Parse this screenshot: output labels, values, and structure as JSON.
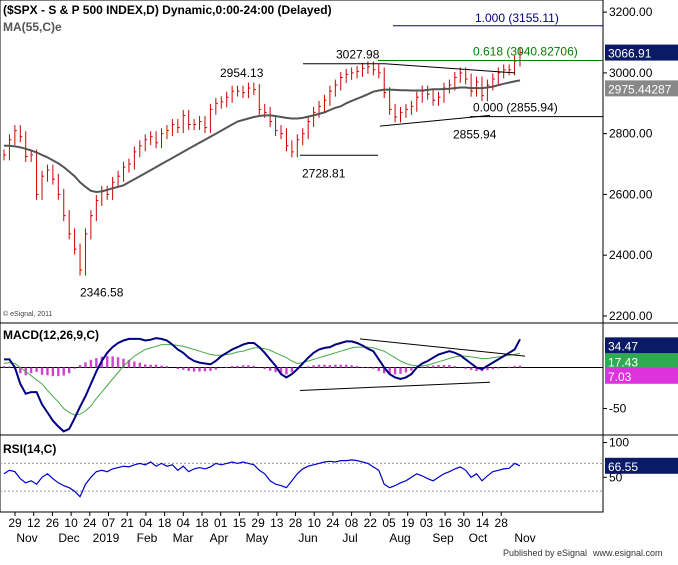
{
  "header": {
    "title": "($SPX - S & P 500 INDEX,D) Dynamic,0:00-24:00 (Delayed)",
    "ma_label": "MA(55,C)e",
    "copyright": "© eSignal, 2011"
  },
  "footer": {
    "published": "Published by eSignal",
    "url": "www.esignal.com"
  },
  "colors": {
    "price": "#cc0000",
    "ma": "#555555",
    "macd_line": "#000080",
    "macd_signal": "#44aa44",
    "histogram": "#cc44cc",
    "rsi": "#0000cc",
    "fib_green": "#008000",
    "fib_blue": "#000080",
    "badge_dark": "#0a1a66",
    "badge_grey": "#888888",
    "badge_green": "#2eaa50",
    "badge_pink": "#dd33dd"
  },
  "chart_data": [
    {
      "type": "line",
      "panel": "price",
      "ylim": [
        2180,
        3240
      ],
      "yticks": [
        "3200.00",
        "3000.00",
        "2800.00",
        "2600.00",
        "2400.00",
        "2200.00"
      ],
      "ytick_values": [
        3200,
        3000,
        2800,
        2600,
        2400,
        2200
      ],
      "current_value": "3066.91",
      "ma_value": "2975.44287",
      "annotations": [
        {
          "label": "1.000 (3155.11)",
          "value": 3155.11
        },
        {
          "label": "0.618 (3040.82706)",
          "value": 3040.83
        },
        {
          "label": "0.000 (2855.94)",
          "value": 2855.94
        },
        {
          "label": "3027.98",
          "value": 3027.98
        },
        {
          "label": "2954.13",
          "value": 2954.13
        },
        {
          "label": "2855.94",
          "value": 2855.94
        },
        {
          "label": "2728.81",
          "value": 2728.81
        },
        {
          "label": "2346.58",
          "value": 2346.58
        }
      ],
      "series": [
        {
          "key": "close",
          "values": [
            2730,
            2780,
            2810,
            2790,
            2725,
            2730,
            2600,
            2660,
            2680,
            2650,
            2600,
            2530,
            2470,
            2420,
            2351,
            2470,
            2530,
            2580,
            2610,
            2600,
            2640,
            2660,
            2690,
            2700,
            2740,
            2760,
            2780,
            2790,
            2770,
            2800,
            2810,
            2830,
            2820,
            2860,
            2830,
            2830,
            2840,
            2820,
            2880,
            2900,
            2905,
            2920,
            2940,
            2940,
            2935,
            2950,
            2945,
            2880,
            2870,
            2840,
            2810,
            2800,
            2760,
            2740,
            2780,
            2800,
            2840,
            2870,
            2890,
            2910,
            2940,
            2960,
            2985,
            2995,
            3000,
            3005,
            3015,
            3020,
            3010,
            3000,
            2935,
            2880,
            2855,
            2870,
            2880,
            2890,
            2920,
            2940,
            2930,
            2910,
            2920,
            2950,
            2960,
            2985,
            3000,
            2980,
            2940,
            2970,
            2925,
            2960,
            2980,
            3000,
            3010,
            3010,
            3039,
            3066.91
          ]
        },
        {
          "key": "ma",
          "values": [
            2760,
            2760,
            2758,
            2755,
            2750,
            2745,
            2738,
            2730,
            2722,
            2712,
            2702,
            2690,
            2675,
            2660,
            2640,
            2625,
            2612,
            2608,
            2610,
            2615,
            2620,
            2625,
            2630,
            2640,
            2650,
            2660,
            2670,
            2680,
            2690,
            2700,
            2710,
            2720,
            2730,
            2740,
            2750,
            2760,
            2770,
            2780,
            2790,
            2800,
            2810,
            2820,
            2830,
            2840,
            2845,
            2850,
            2855,
            2858,
            2860,
            2860,
            2858,
            2855,
            2852,
            2850,
            2850,
            2852,
            2856,
            2860,
            2865,
            2870,
            2878,
            2885,
            2890,
            2900,
            2908,
            2915,
            2922,
            2930,
            2938,
            2942,
            2945,
            2945,
            2944,
            2943,
            2943,
            2942,
            2942,
            2942,
            2944,
            2946,
            2946,
            2947,
            2948,
            2950,
            2952,
            2952,
            2950,
            2950,
            2950,
            2952,
            2955,
            2960,
            2964,
            2968,
            2972,
            2975.44
          ]
        }
      ]
    },
    {
      "type": "line",
      "panel": "macd",
      "label": "MACD(12,26,9,C)",
      "ylim": [
        -80,
        52
      ],
      "yticks": [
        "-50"
      ],
      "ytick_values": [
        -50
      ],
      "values_shown": [
        "34.47",
        "17.43",
        "7.03"
      ],
      "series": [
        {
          "key": "macd",
          "values": [
            10,
            10,
            0,
            -20,
            -32,
            -30,
            -30,
            -45,
            -55,
            -65,
            -72,
            -78,
            -75,
            -62,
            -48,
            -35,
            -20,
            -5,
            8,
            18,
            25,
            30,
            33,
            35,
            35,
            35,
            33,
            34,
            36,
            35,
            33,
            28,
            22,
            18,
            12,
            8,
            6,
            5,
            4,
            8,
            14,
            18,
            22,
            25,
            28,
            30,
            30,
            25,
            18,
            10,
            2,
            -8,
            -12,
            -8,
            -2,
            5,
            12,
            18,
            22,
            24,
            25,
            28,
            30,
            32,
            32,
            30,
            27,
            23,
            20,
            10,
            0,
            -8,
            -12,
            -14,
            -12,
            -8,
            0,
            5,
            8,
            12,
            16,
            18,
            20,
            18,
            15,
            10,
            5,
            0,
            -2,
            2,
            6,
            10,
            14,
            18,
            22,
            34.47
          ]
        },
        {
          "key": "signal",
          "values": [
            5,
            6,
            5,
            0,
            -5,
            -10,
            -15,
            -20,
            -28,
            -35,
            -42,
            -50,
            -55,
            -58,
            -57,
            -53,
            -47,
            -38,
            -30,
            -22,
            -14,
            -6,
            2,
            8,
            14,
            18,
            22,
            24,
            26,
            28,
            28,
            28,
            27,
            26,
            24,
            22,
            20,
            18,
            16,
            15,
            15,
            16,
            17,
            19,
            20,
            22,
            24,
            24,
            23,
            21,
            18,
            15,
            12,
            8,
            5,
            6,
            8,
            10,
            12,
            14,
            16,
            18,
            20,
            22,
            24,
            25,
            25,
            25,
            24,
            22,
            20,
            16,
            12,
            8,
            5,
            3,
            2,
            2,
            3,
            5,
            7,
            9,
            11,
            13,
            14,
            14,
            13,
            12,
            11,
            11,
            12,
            13,
            14,
            15,
            16,
            17.43
          ]
        },
        {
          "key": "histogram",
          "values": [
            5,
            4,
            -5,
            -20,
            -27,
            -20,
            -15,
            -25,
            -27,
            -30,
            -30,
            -28,
            -20,
            -4,
            9,
            18,
            27,
            33,
            38,
            40,
            39,
            36,
            31,
            27,
            21,
            17,
            11,
            10,
            10,
            7,
            5,
            0,
            -5,
            -8,
            -12,
            -14,
            -14,
            -13,
            -12,
            -7,
            -1,
            2,
            5,
            6,
            8,
            8,
            6,
            1,
            -5,
            -11,
            -16,
            -23,
            -24,
            -16,
            -7,
            -1,
            4,
            8,
            10,
            10,
            9,
            10,
            10,
            10,
            8,
            5,
            2,
            -2,
            -4,
            -12,
            -20,
            -24,
            -24,
            -22,
            -17,
            -11,
            -2,
            3,
            5,
            7,
            9,
            9,
            9,
            5,
            1,
            -4,
            -8,
            -12,
            -13,
            -9,
            -6,
            -3,
            0,
            3,
            6,
            7.03
          ]
        }
      ]
    },
    {
      "type": "line",
      "panel": "rsi",
      "label": "RSI(14,C)",
      "ylim": [
        0,
        108
      ],
      "yticks": [
        "100",
        "50"
      ],
      "ytick_values": [
        100,
        50
      ],
      "value_shown": "66.55",
      "series": [
        {
          "key": "rsi",
          "values": [
            55,
            60,
            58,
            48,
            42,
            45,
            40,
            50,
            55,
            48,
            42,
            38,
            35,
            30,
            22,
            40,
            50,
            58,
            60,
            58,
            62,
            64,
            66,
            65,
            68,
            70,
            68,
            72,
            66,
            70,
            66,
            68,
            60,
            66,
            58,
            62,
            64,
            62,
            65,
            70,
            68,
            70,
            72,
            70,
            72,
            70,
            68,
            60,
            55,
            45,
            40,
            38,
            35,
            45,
            55,
            62,
            66,
            68,
            70,
            72,
            73,
            72,
            74,
            74,
            75,
            74,
            72,
            70,
            65,
            60,
            40,
            35,
            38,
            42,
            45,
            50,
            55,
            52,
            48,
            45,
            50,
            55,
            58,
            62,
            65,
            60,
            50,
            55,
            45,
            52,
            58,
            60,
            62,
            63,
            70,
            66.55
          ]
        }
      ]
    }
  ],
  "x_axis": {
    "ticks": [
      "29",
      "12",
      "26",
      "10",
      "24",
      "07",
      "21",
      "04",
      "18",
      "04",
      "18",
      "01",
      "15",
      "29",
      "13",
      "28",
      "10",
      "24",
      "08",
      "22",
      "05",
      "19",
      "03",
      "16",
      "30",
      "14",
      "28"
    ],
    "months": [
      "Nov",
      "Dec",
      "2019",
      "Feb",
      "Mar",
      "Apr",
      "May",
      "Jun",
      "Jul",
      "Aug",
      "Sep",
      "Oct",
      "Nov"
    ]
  }
}
